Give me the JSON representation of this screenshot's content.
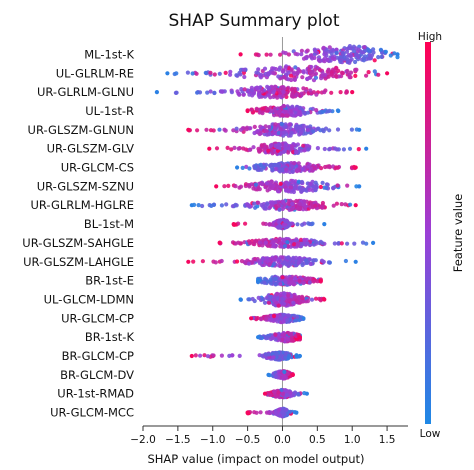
{
  "chart_data": {
    "type": "scatter",
    "subtype": "shap-beeswarm",
    "title": "SHAP Summary plot",
    "xlabel": "SHAP value (impact on model output)",
    "xlim": [
      -2.0,
      1.8
    ],
    "xticks": [
      -2.0,
      -1.5,
      -1.0,
      -0.5,
      0.0,
      0.5,
      1.0,
      1.5
    ],
    "xtick_labels": [
      "−2.0",
      "−1.5",
      "−1.0",
      "−0.5",
      "0.0",
      "0.5",
      "1.0",
      "1.5"
    ],
    "zero_line": 0.0,
    "colorbar": {
      "label": "Feature value",
      "high_label": "High",
      "low_label": "Low",
      "low_color": "#1e88e5",
      "high_color": "#ff0052"
    },
    "features": [
      {
        "name": "ML-1st-K",
        "min": -0.6,
        "max": 1.65,
        "center": 0.9,
        "spread": 0.35,
        "width": 1.0,
        "low_side": "right"
      },
      {
        "name": "UL-GLRLM-RE",
        "min": -1.65,
        "max": 1.5,
        "center": 0.25,
        "spread": 0.45,
        "width": 0.85,
        "low_side": "left"
      },
      {
        "name": "UR-GLRLM-GLNU",
        "min": -1.8,
        "max": 1.0,
        "center": -0.1,
        "spread": 0.3,
        "width": 0.65,
        "low_side": "left"
      },
      {
        "name": "UL-1st-R",
        "min": -0.5,
        "max": 0.8,
        "center": 0.05,
        "spread": 0.2,
        "width": 0.6,
        "low_side": "right"
      },
      {
        "name": "UR-GLSZM-GLNUN",
        "min": -1.35,
        "max": 1.1,
        "center": 0.0,
        "spread": 0.25,
        "width": 0.7,
        "low_side": "right"
      },
      {
        "name": "UR-GLSZM-GLV",
        "min": -1.05,
        "max": 1.2,
        "center": 0.0,
        "spread": 0.2,
        "width": 0.65,
        "low_side": "right"
      },
      {
        "name": "UR-GLCM-CS",
        "min": -0.65,
        "max": 1.05,
        "center": 0.1,
        "spread": 0.25,
        "width": 0.55,
        "low_side": "left"
      },
      {
        "name": "UR-GLSZM-SZNU",
        "min": -0.95,
        "max": 1.1,
        "center": 0.1,
        "spread": 0.3,
        "width": 0.7,
        "low_side": "right"
      },
      {
        "name": "UR-GLRLM-HGLRE",
        "min": -1.3,
        "max": 1.05,
        "center": 0.1,
        "spread": 0.3,
        "width": 0.55,
        "low_side": "left"
      },
      {
        "name": "BL-1st-M",
        "min": -0.7,
        "max": 0.6,
        "center": 0.0,
        "spread": 0.06,
        "width": 0.5,
        "low_side": "right"
      },
      {
        "name": "UR-GLSZM-SAHGLE",
        "min": -0.9,
        "max": 1.3,
        "center": 0.05,
        "spread": 0.25,
        "width": 0.5,
        "low_side": "right"
      },
      {
        "name": "UR-GLSZM-LAHGLE",
        "min": -1.35,
        "max": 1.05,
        "center": 0.0,
        "spread": 0.25,
        "width": 0.55,
        "low_side": "right"
      },
      {
        "name": "BR-1st-E",
        "min": -0.35,
        "max": 0.55,
        "center": 0.05,
        "spread": 0.2,
        "width": 0.5,
        "low_side": "left"
      },
      {
        "name": "UL-GLCM-LDMN",
        "min": -0.6,
        "max": 0.6,
        "center": 0.0,
        "spread": 0.15,
        "width": 0.75,
        "low_side": "left"
      },
      {
        "name": "UR-GLCM-CP",
        "min": -0.45,
        "max": 0.3,
        "center": 0.0,
        "spread": 0.12,
        "width": 0.45,
        "low_side": "right"
      },
      {
        "name": "BR-1st-K",
        "min": -0.35,
        "max": 0.25,
        "center": 0.05,
        "spread": 0.12,
        "width": 0.5,
        "low_side": "left"
      },
      {
        "name": "BR-GLCM-CP",
        "min": -1.3,
        "max": 0.25,
        "center": -0.05,
        "spread": 0.1,
        "width": 0.45,
        "low_side": "right"
      },
      {
        "name": "BR-GLCM-DV",
        "min": -0.2,
        "max": 0.15,
        "center": 0.0,
        "spread": 0.06,
        "width": 0.45,
        "low_side": "left"
      },
      {
        "name": "UR-1st-RMAD",
        "min": -0.25,
        "max": 0.35,
        "center": 0.0,
        "spread": 0.08,
        "width": 0.45,
        "low_side": "right"
      },
      {
        "name": "UR-GLCM-MCC",
        "min": -0.5,
        "max": 0.2,
        "center": 0.0,
        "spread": 0.05,
        "width": 0.45,
        "low_side": "right"
      }
    ]
  }
}
